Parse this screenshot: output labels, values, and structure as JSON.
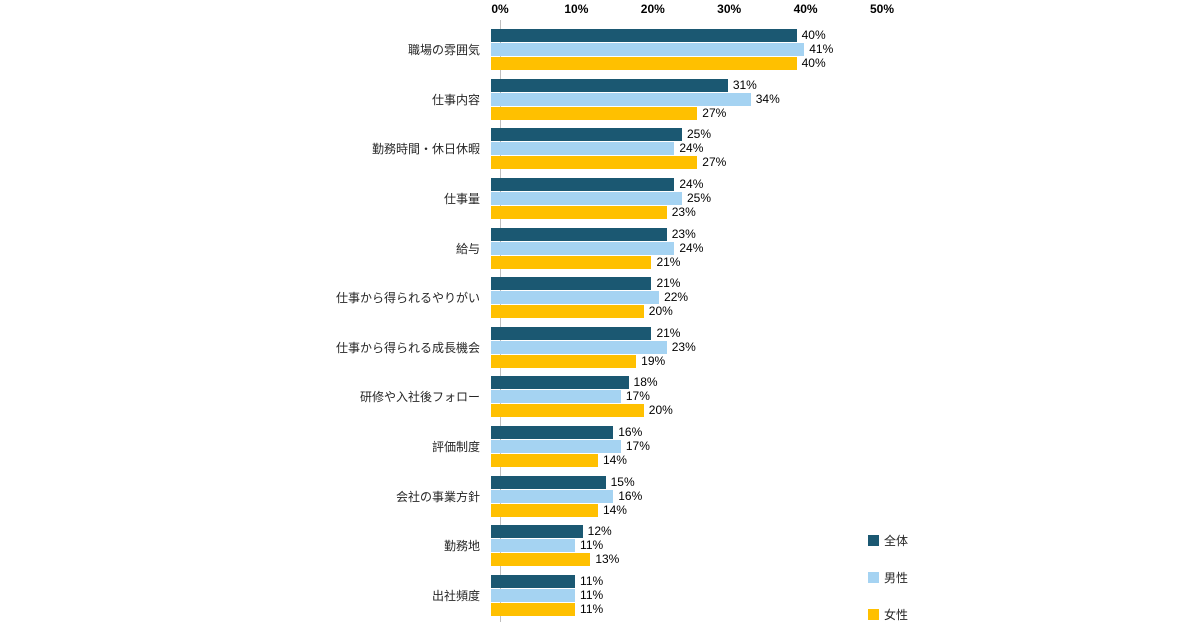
{
  "chart_data": {
    "type": "bar",
    "orientation": "horizontal",
    "title": "",
    "xlabel": "",
    "ylabel": "",
    "value_suffix": "%",
    "x_axis": {
      "ticks": [
        "0%",
        "10%",
        "20%",
        "30%",
        "40%",
        "50%"
      ],
      "tick_values": [
        0,
        10,
        20,
        30,
        40,
        50
      ],
      "max": 50
    },
    "grid": false,
    "legend_position": "right",
    "categories": [
      "職場の雰囲気",
      "仕事内容",
      "勤務時間・休日休暇",
      "仕事量",
      "給与",
      "仕事から得られるやりがい",
      "仕事から得られる成長機会",
      "研修や入社後フォロー",
      "評価制度",
      "会社の事業方針",
      "勤務地",
      "出社頻度"
    ],
    "series": [
      {
        "name": "全体",
        "color": "#1B5872",
        "values": [
          40,
          31,
          25,
          24,
          23,
          21,
          21,
          18,
          16,
          15,
          12,
          11
        ]
      },
      {
        "name": "男性",
        "color": "#A5D3F2",
        "values": [
          41,
          34,
          24,
          25,
          24,
          22,
          23,
          17,
          17,
          16,
          11,
          11
        ]
      },
      {
        "name": "女性",
        "color": "#FFC000",
        "values": [
          40,
          27,
          27,
          23,
          21,
          20,
          19,
          20,
          14,
          14,
          13,
          11
        ]
      }
    ]
  }
}
